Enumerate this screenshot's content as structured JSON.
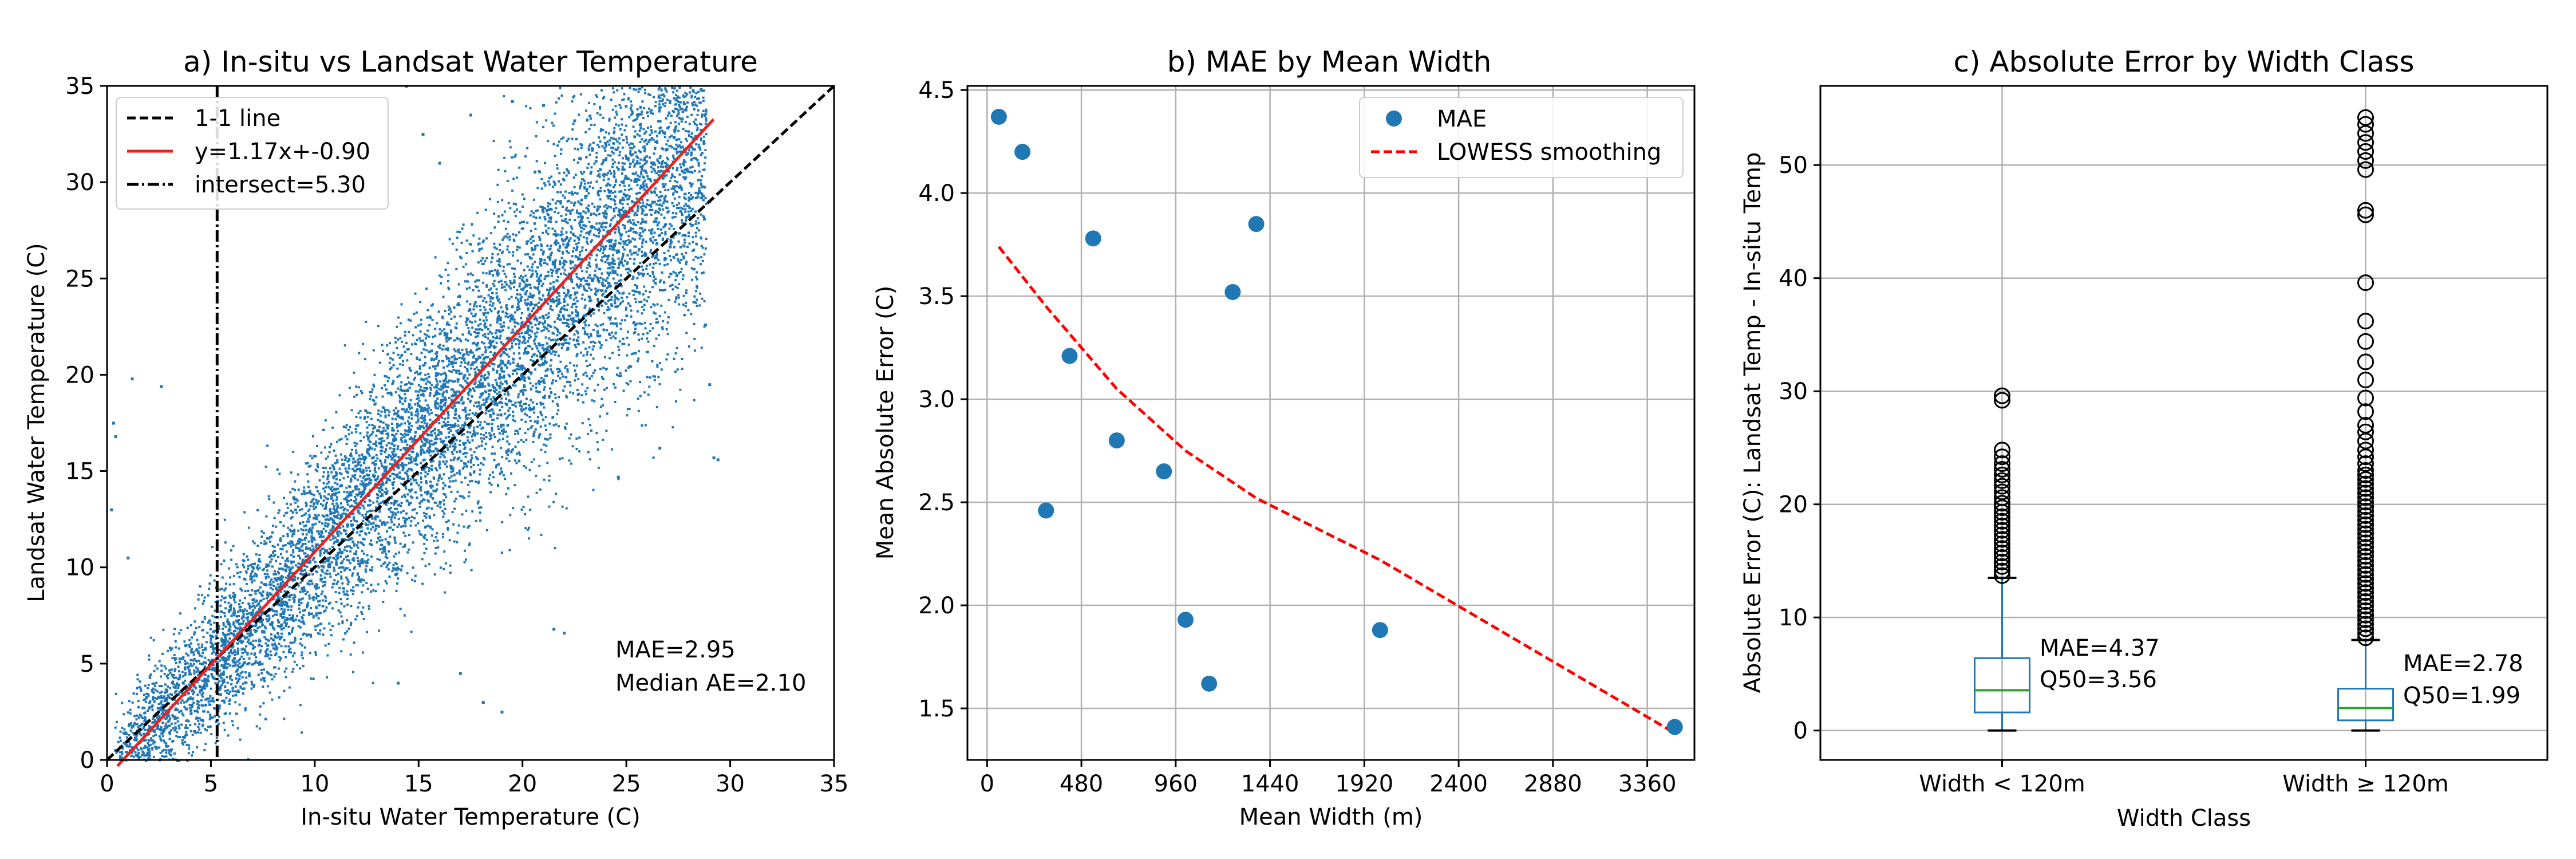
{
  "chart_data": [
    {
      "type": "scatter",
      "title": "a) In-situ vs Landsat Water Temperature",
      "xlabel": "In-situ Water Temperature (C)",
      "ylabel": "Landsat Water Temperature (C)",
      "xlim": [
        0,
        35
      ],
      "ylim": [
        0,
        35
      ],
      "xticks": [
        0,
        5,
        10,
        15,
        20,
        25,
        30,
        35
      ],
      "yticks": [
        0,
        5,
        10,
        15,
        20,
        25,
        30,
        35
      ],
      "grid": false,
      "legend_position": "upper-left",
      "legend": [
        "1-1 line",
        "y=1.17x+-0.90",
        "intersect=5.30"
      ],
      "reference_line": {
        "name": "1-1 line",
        "slope": 1,
        "intercept": 0,
        "style": "dashed",
        "color": "#000000"
      },
      "fit_line": {
        "name": "y=1.17x+-0.90",
        "slope": 1.17,
        "intercept": -0.9,
        "x_range": [
          0.5,
          29.2
        ],
        "color": "#e8221f"
      },
      "vertical_line": {
        "name": "intersect=5.30",
        "x": 5.3,
        "style": "dashdot",
        "color": "#000000"
      },
      "point_color": "#1f77b4",
      "annotations": [
        "MAE=2.95",
        "Median AE=2.10"
      ],
      "points": [
        [
          0.3,
          17.5
        ],
        [
          0.4,
          16.8
        ],
        [
          1.2,
          19.8
        ],
        [
          2.6,
          19.4
        ],
        [
          0.2,
          13.0
        ],
        [
          1.0,
          10.5
        ],
        [
          14.4,
          35.0
        ],
        [
          15.2,
          32.5
        ],
        [
          16.0,
          31.0
        ],
        [
          17.5,
          33.5
        ],
        [
          19.5,
          34.2
        ],
        [
          21.0,
          34.0
        ],
        [
          22.5,
          33.2
        ],
        [
          24.0,
          32.0
        ],
        [
          25.5,
          31.0
        ],
        [
          26.8,
          29.8
        ],
        [
          27.6,
          28.5
        ],
        [
          29.0,
          29.0
        ],
        [
          29.2,
          15.7
        ],
        [
          29.4,
          15.6
        ],
        [
          26.6,
          16.2
        ],
        [
          24.6,
          14.7
        ],
        [
          21.5,
          6.8
        ],
        [
          22.0,
          6.6
        ],
        [
          19.0,
          2.5
        ],
        [
          18.1,
          3.0
        ],
        [
          14.0,
          4.0
        ],
        [
          17.0,
          4.5
        ],
        [
          29.0,
          19.5
        ],
        [
          28.8,
          22.6
        ]
      ]
    },
    {
      "type": "scatter",
      "title": "b) MAE by Mean Width",
      "xlabel": "Mean Width (m)",
      "ylabel": "Mean Absolute Error (C)",
      "xlim": [
        -100,
        3600
      ],
      "ylim": [
        1.25,
        4.52
      ],
      "xticks": [
        0,
        480,
        960,
        1440,
        1920,
        2400,
        2880,
        3360
      ],
      "yticks": [
        1.5,
        2.0,
        2.5,
        3.0,
        3.5,
        4.0,
        4.5
      ],
      "grid": true,
      "legend_position": "upper-right",
      "series": [
        {
          "name": "MAE",
          "color": "#1f77b4",
          "x": [
            60,
            180,
            300,
            420,
            540,
            660,
            900,
            1010,
            1130,
            1250,
            1370,
            2000,
            3500
          ],
          "y": [
            4.37,
            4.2,
            2.46,
            3.21,
            3.78,
            2.8,
            2.65,
            1.93,
            1.62,
            3.52,
            3.85,
            1.88,
            1.41
          ]
        },
        {
          "name": "LOWESS smoothing",
          "color": "#ff0000",
          "style": "dashed",
          "x": [
            60,
            300,
            660,
            1010,
            1370,
            2000,
            3500
          ],
          "y": [
            3.74,
            3.45,
            3.05,
            2.75,
            2.52,
            2.22,
            1.38
          ]
        }
      ]
    },
    {
      "type": "box",
      "title": "c) Absolute Error by Width Class",
      "xlabel": "Width Class",
      "ylabel": "Absolute Error (C): Landsat Temp - In-situ Temp",
      "ylim": [
        -2.6,
        57
      ],
      "yticks": [
        0,
        10,
        20,
        30,
        40,
        50
      ],
      "grid": true,
      "categories": [
        "Width < 120m",
        "Width ≥ 120m"
      ],
      "boxes": [
        {
          "label": "Width < 120m",
          "whisker_low": 0,
          "q1": 1.6,
          "median": 3.56,
          "q3": 6.4,
          "whisker_high": 13.5,
          "mae": 4.37,
          "annotation": [
            "MAE=4.37",
            "Q50=3.56"
          ],
          "outliers": [
            13.7,
            14.1,
            14.5,
            14.9,
            15.3,
            15.7,
            16.1,
            16.5,
            16.9,
            17.3,
            17.7,
            18.1,
            18.5,
            18.9,
            19.3,
            19.7,
            20.1,
            20.6,
            21.1,
            21.6,
            22.1,
            22.6,
            23.1,
            23.6,
            24.2,
            24.8,
            29.2,
            29.6
          ]
        },
        {
          "label": "Width ≥ 120m",
          "whisker_low": 0,
          "q1": 0.9,
          "median": 1.99,
          "q3": 3.7,
          "whisker_high": 8.0,
          "mae": 2.78,
          "annotation": [
            "MAE=2.78",
            "Q50=1.99"
          ],
          "outliers": [
            8.2,
            8.6,
            9.0,
            9.4,
            9.8,
            10.2,
            10.6,
            11.0,
            11.4,
            11.8,
            12.2,
            12.6,
            13.0,
            13.4,
            13.8,
            14.2,
            14.6,
            15.0,
            15.4,
            15.8,
            16.2,
            16.6,
            17.0,
            17.4,
            17.8,
            18.2,
            18.6,
            19.0,
            19.4,
            19.8,
            20.2,
            20.6,
            21.0,
            21.4,
            21.8,
            22.2,
            22.6,
            23.0,
            23.6,
            24.2,
            24.8,
            25.6,
            26.4,
            27.0,
            28.2,
            29.4,
            31.0,
            32.6,
            34.4,
            36.2,
            39.6,
            45.6,
            46.0,
            49.6,
            50.4,
            51.2,
            52.0,
            52.8,
            53.6,
            54.2
          ]
        }
      ]
    }
  ]
}
